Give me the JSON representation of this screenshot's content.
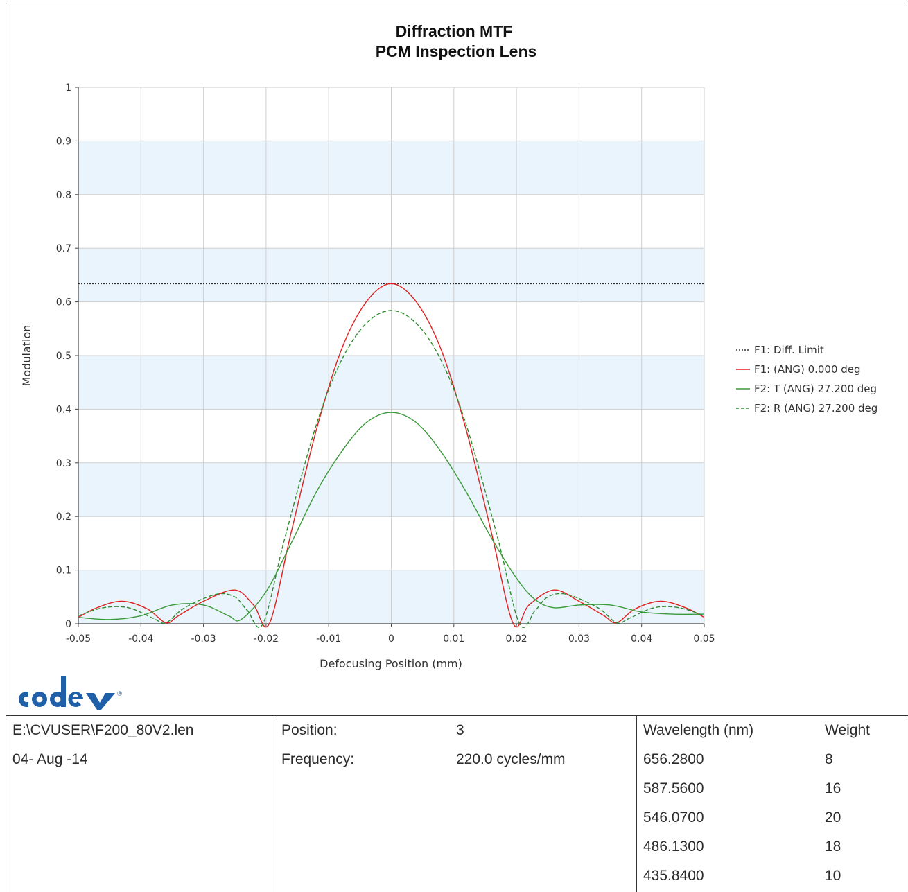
{
  "chart_data": {
    "type": "line",
    "title": "Diffraction MTF",
    "subtitle": "PCM Inspection Lens",
    "xlabel": "Defocusing Position (mm)",
    "ylabel": "Modulation",
    "xlim": [
      -0.05,
      0.05
    ],
    "ylim": [
      0,
      1
    ],
    "xticks": [
      -0.05,
      -0.04,
      -0.03,
      -0.02,
      -0.01,
      0,
      0.01,
      0.02,
      0.03,
      0.04,
      0.05
    ],
    "xtick_labels": [
      "-0.05",
      "-0.04",
      "-0.03",
      "-0.02",
      "-0.01",
      "0",
      "0.01",
      "0.02",
      "0.03",
      "0.04",
      "0.05"
    ],
    "yticks": [
      0,
      0.1,
      0.2,
      0.3,
      0.4,
      0.5,
      0.6,
      0.7,
      0.8,
      0.9,
      1
    ],
    "ytick_labels": [
      "0",
      "0.1",
      "0.2",
      "0.3",
      "0.4",
      "0.5",
      "0.6",
      "0.7",
      "0.8",
      "0.9",
      "1"
    ],
    "grid": true,
    "legend_position": "right",
    "series": [
      {
        "name": "F1: Diff. Limit",
        "color": "#333333",
        "dash": "dotted",
        "x": [
          -0.05,
          0.05
        ],
        "y": [
          0.634,
          0.634
        ]
      },
      {
        "name": "F1: (ANG) 0.000 deg",
        "color": "#e02020",
        "dash": "solid",
        "x": [
          -0.05,
          -0.047,
          -0.043,
          -0.039,
          -0.036,
          -0.034,
          -0.03,
          -0.025,
          -0.022,
          -0.0195,
          -0.016,
          -0.012,
          -0.008,
          -0.004,
          0,
          0.004,
          0.008,
          0.012,
          0.016,
          0.0195,
          0.022,
          0.026,
          0.03,
          0.034,
          0.036,
          0.039,
          0.043,
          0.047,
          0.05
        ],
        "y": [
          0.012,
          0.03,
          0.042,
          0.028,
          0.002,
          0.015,
          0.042,
          0.063,
          0.035,
          0.0,
          0.17,
          0.36,
          0.51,
          0.6,
          0.634,
          0.6,
          0.51,
          0.36,
          0.17,
          0.0,
          0.035,
          0.063,
          0.042,
          0.015,
          0.002,
          0.028,
          0.042,
          0.03,
          0.012
        ]
      },
      {
        "name": "F2: T (ANG) 27.200 deg",
        "color": "#3a9a3a",
        "dash": "solid",
        "x": [
          -0.05,
          -0.045,
          -0.04,
          -0.035,
          -0.03,
          -0.026,
          -0.024,
          -0.02,
          -0.016,
          -0.012,
          -0.008,
          -0.004,
          0,
          0.004,
          0.008,
          0.012,
          0.016,
          0.02,
          0.023,
          0.026,
          0.03,
          0.035,
          0.04,
          0.045,
          0.05
        ],
        "y": [
          0.012,
          0.008,
          0.015,
          0.035,
          0.035,
          0.015,
          0.008,
          0.06,
          0.15,
          0.245,
          0.32,
          0.375,
          0.394,
          0.375,
          0.32,
          0.245,
          0.16,
          0.085,
          0.045,
          0.03,
          0.035,
          0.035,
          0.022,
          0.018,
          0.018
        ]
      },
      {
        "name": "F2: R (ANG) 27.200 deg",
        "color": "#2e8b2e",
        "dash": "dashed",
        "x": [
          -0.05,
          -0.046,
          -0.042,
          -0.038,
          -0.036,
          -0.033,
          -0.028,
          -0.025,
          -0.023,
          -0.0205,
          -0.017,
          -0.012,
          -0.008,
          -0.004,
          0,
          0.004,
          0.008,
          0.012,
          0.017,
          0.0205,
          0.023,
          0.025,
          0.028,
          0.033,
          0.036,
          0.038,
          0.042,
          0.046,
          0.05
        ],
        "y": [
          0.015,
          0.03,
          0.03,
          0.01,
          0.002,
          0.03,
          0.055,
          0.05,
          0.025,
          0.0,
          0.16,
          0.37,
          0.49,
          0.56,
          0.584,
          0.56,
          0.49,
          0.37,
          0.16,
          0.0,
          0.025,
          0.05,
          0.055,
          0.03,
          0.002,
          0.01,
          0.03,
          0.03,
          0.015
        ]
      }
    ]
  },
  "colors": {
    "band": "#eaf4fc",
    "grid": "#cfcfcf",
    "axis": "#444444",
    "logo": "#1e5fa8"
  },
  "logo": {
    "text": "code v",
    "icon": "code-v-logo"
  },
  "info": {
    "file": "E:\\CVUSER\\F200_80V2.len",
    "date": "04- Aug -14",
    "position_label": "Position:",
    "position_value": "3",
    "frequency_label": "Frequency:",
    "frequency_value": "220.0 cycles/mm",
    "wavelength_header": "Wavelength (nm)",
    "weight_header": "Weight",
    "wavelengths": [
      {
        "wl": "656.2800",
        "weight": "8"
      },
      {
        "wl": "587.5600",
        "weight": "16"
      },
      {
        "wl": "546.0700",
        "weight": "20"
      },
      {
        "wl": "486.1300",
        "weight": "18"
      },
      {
        "wl": "435.8400",
        "weight": "10"
      }
    ]
  }
}
